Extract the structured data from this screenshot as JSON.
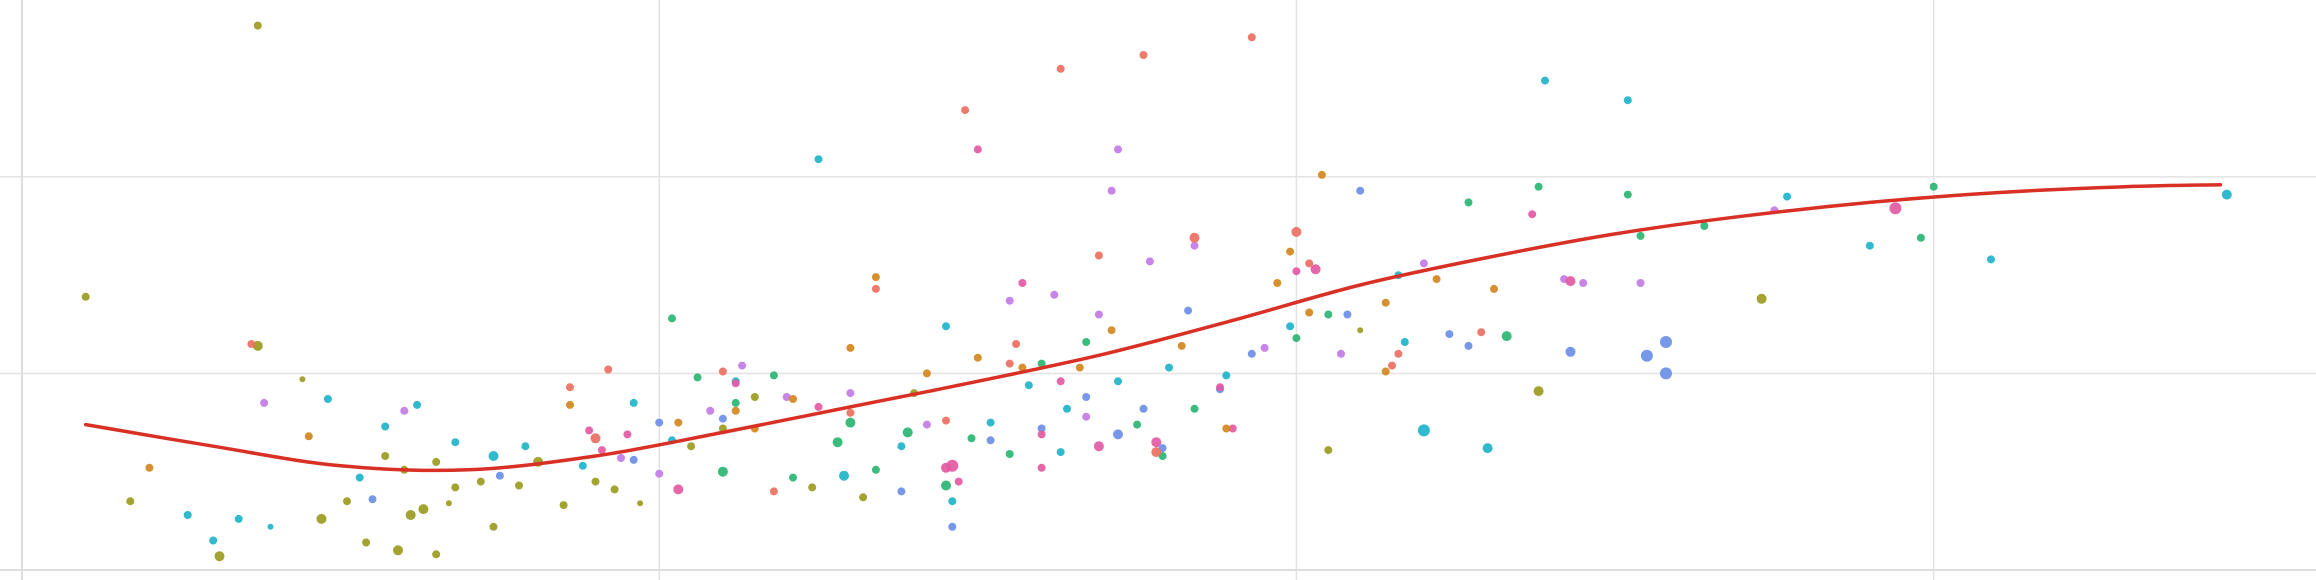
{
  "chart_data": {
    "type": "scatter",
    "title": "",
    "xlabel": "",
    "ylabel": "",
    "xlim": [
      0,
      3.6
    ],
    "ylim": [
      0,
      2.9
    ],
    "grid": true,
    "legend": "none",
    "x_gridlines": [
      1,
      2,
      3
    ],
    "y_gridlines": [
      1,
      2
    ],
    "palette": [
      "#9b9b1f",
      "#2ab573",
      "#1fb3c9",
      "#6b8fe6",
      "#c47ae6",
      "#e35aa3",
      "#ec6f5f",
      "#d4871d"
    ],
    "trend_line": {
      "color": "#d93025",
      "x": [
        0.1,
        0.3,
        0.5,
        0.7,
        0.9,
        1.1,
        1.3,
        1.5,
        1.7,
        1.9,
        2.1,
        2.3,
        2.5,
        2.7,
        2.9,
        3.1,
        3.3,
        3.45
      ],
      "y": [
        0.74,
        0.63,
        0.53,
        0.51,
        0.58,
        0.7,
        0.83,
        0.96,
        1.1,
        1.27,
        1.45,
        1.59,
        1.71,
        1.8,
        1.87,
        1.92,
        1.95,
        1.96
      ]
    },
    "series": [
      {
        "color": "#9b9b1f",
        "points": [
          [
            0.37,
            2.77,
            4
          ],
          [
            0.1,
            1.39,
            4
          ],
          [
            0.17,
            0.35,
            4
          ],
          [
            0.31,
            0.07,
            5
          ],
          [
            0.37,
            1.14,
            5
          ],
          [
            0.44,
            0.97,
            3
          ],
          [
            0.47,
            0.26,
            5
          ],
          [
            0.51,
            0.35,
            4
          ],
          [
            0.54,
            0.14,
            4
          ],
          [
            0.57,
            0.58,
            4
          ],
          [
            0.59,
            0.1,
            5
          ],
          [
            0.61,
            0.28,
            5
          ],
          [
            0.63,
            0.31,
            5
          ],
          [
            0.65,
            0.55,
            4
          ],
          [
            0.67,
            0.34,
            3
          ],
          [
            0.72,
            0.45,
            4
          ],
          [
            0.78,
            0.43,
            4
          ],
          [
            0.81,
            0.55,
            5
          ],
          [
            0.85,
            0.33,
            4
          ],
          [
            0.9,
            0.45,
            4
          ],
          [
            0.93,
            0.41,
            4
          ],
          [
            0.97,
            0.34,
            3
          ],
          [
            1.05,
            0.63,
            4
          ],
          [
            1.1,
            0.72,
            4
          ],
          [
            1.15,
            0.88,
            4
          ],
          [
            1.24,
            0.42,
            4
          ],
          [
            1.32,
            0.37,
            4
          ],
          [
            1.4,
            0.9,
            4
          ],
          [
            2.05,
            0.61,
            4
          ],
          [
            2.1,
            1.22,
            3
          ],
          [
            2.38,
            0.91,
            5
          ],
          [
            2.73,
            1.38,
            5
          ],
          [
            0.6,
            0.51,
            4
          ],
          [
            0.65,
            0.08,
            4
          ],
          [
            0.74,
            0.22,
            4
          ],
          [
            0.68,
            0.42,
            4
          ]
        ]
      },
      {
        "color": "#2ab573",
        "points": [
          [
            1.02,
            1.28,
            4
          ],
          [
            1.06,
            0.98,
            4
          ],
          [
            1.12,
            0.85,
            4
          ],
          [
            1.18,
            0.99,
            4
          ],
          [
            1.28,
            0.65,
            5
          ],
          [
            1.3,
            0.75,
            5
          ],
          [
            1.39,
            0.7,
            5
          ],
          [
            1.45,
            0.43,
            5
          ],
          [
            1.49,
            0.67,
            4
          ],
          [
            1.55,
            0.59,
            4
          ],
          [
            1.6,
            1.05,
            4
          ],
          [
            1.67,
            1.16,
            4
          ],
          [
            1.75,
            0.74,
            4
          ],
          [
            1.79,
            0.58,
            4
          ],
          [
            1.84,
            0.82,
            4
          ],
          [
            2.0,
            1.18,
            4
          ],
          [
            2.05,
            1.3,
            4
          ],
          [
            2.27,
            1.87,
            4
          ],
          [
            2.38,
            1.95,
            4
          ],
          [
            2.52,
            1.91,
            4
          ],
          [
            2.54,
            1.7,
            4
          ],
          [
            3.0,
            1.95,
            4
          ],
          [
            2.33,
            1.19,
            5
          ],
          [
            2.64,
            1.75,
            4
          ],
          [
            2.98,
            1.69,
            4
          ],
          [
            1.21,
            0.47,
            4
          ],
          [
            1.1,
            0.5,
            5
          ],
          [
            1.34,
            0.51,
            4
          ]
        ]
      },
      {
        "color": "#1fb3c9",
        "points": [
          [
            0.26,
            0.28,
            4
          ],
          [
            0.3,
            0.15,
            4
          ],
          [
            0.34,
            0.26,
            4
          ],
          [
            0.39,
            0.22,
            3
          ],
          [
            0.48,
            0.87,
            4
          ],
          [
            0.53,
            0.47,
            4
          ],
          [
            0.57,
            0.73,
            4
          ],
          [
            0.62,
            0.84,
            4
          ],
          [
            0.68,
            0.65,
            4
          ],
          [
            0.74,
            0.58,
            5
          ],
          [
            0.79,
            0.63,
            4
          ],
          [
            0.88,
            0.53,
            4
          ],
          [
            0.96,
            0.85,
            4
          ],
          [
            1.02,
            0.66,
            4
          ],
          [
            1.12,
            0.96,
            4
          ],
          [
            1.25,
            2.09,
            4
          ],
          [
            1.29,
            0.48,
            5
          ],
          [
            1.38,
            0.63,
            4
          ],
          [
            1.45,
            1.24,
            4
          ],
          [
            1.46,
            0.35,
            4
          ],
          [
            1.52,
            0.75,
            4
          ],
          [
            1.58,
            0.94,
            4
          ],
          [
            1.64,
            0.82,
            4
          ],
          [
            1.72,
            0.96,
            4
          ],
          [
            1.8,
            1.03,
            4
          ],
          [
            1.89,
            0.99,
            4
          ],
          [
            1.99,
            1.24,
            4
          ],
          [
            2.17,
            1.16,
            4
          ],
          [
            2.2,
            0.71,
            6
          ],
          [
            2.3,
            0.62,
            5
          ],
          [
            2.39,
            2.49,
            4
          ],
          [
            2.52,
            2.39,
            4
          ],
          [
            2.77,
            1.9,
            4
          ],
          [
            2.9,
            1.65,
            4
          ],
          [
            3.09,
            1.58,
            4
          ],
          [
            3.46,
            1.91,
            5
          ],
          [
            2.16,
            1.5,
            4
          ],
          [
            1.63,
            0.6,
            4
          ]
        ]
      },
      {
        "color": "#6b8fe6",
        "points": [
          [
            0.55,
            0.36,
            4
          ],
          [
            0.75,
            0.48,
            4
          ],
          [
            0.96,
            0.56,
            4
          ],
          [
            1.0,
            0.75,
            4
          ],
          [
            1.1,
            0.77,
            4
          ],
          [
            1.38,
            0.4,
            4
          ],
          [
            1.46,
            0.22,
            4
          ],
          [
            1.52,
            0.66,
            4
          ],
          [
            1.6,
            0.72,
            4
          ],
          [
            1.67,
            0.88,
            4
          ],
          [
            1.72,
            0.69,
            5
          ],
          [
            1.79,
            0.62,
            4
          ],
          [
            1.83,
            1.32,
            4
          ],
          [
            1.88,
            0.92,
            4
          ],
          [
            1.93,
            1.1,
            4
          ],
          [
            2.1,
            1.93,
            4
          ],
          [
            2.27,
            1.14,
            4
          ],
          [
            2.24,
            1.2,
            4
          ],
          [
            2.43,
            1.11,
            5
          ],
          [
            2.55,
            1.09,
            6
          ],
          [
            2.58,
            1.0,
            6
          ],
          [
            2.58,
            1.16,
            6
          ],
          [
            2.08,
            1.3,
            4
          ],
          [
            1.76,
            0.82,
            4
          ]
        ]
      },
      {
        "color": "#c47ae6",
        "points": [
          [
            0.38,
            0.85,
            4
          ],
          [
            0.6,
            0.81,
            4
          ],
          [
            0.94,
            0.57,
            4
          ],
          [
            1.0,
            0.49,
            4
          ],
          [
            1.13,
            1.04,
            4
          ],
          [
            1.2,
            0.88,
            4
          ],
          [
            1.3,
            0.9,
            4
          ],
          [
            1.42,
            0.74,
            4
          ],
          [
            1.55,
            1.37,
            4
          ],
          [
            1.62,
            1.4,
            4
          ],
          [
            1.69,
            1.3,
            4
          ],
          [
            1.72,
            2.14,
            4
          ],
          [
            1.71,
            1.93,
            4
          ],
          [
            1.77,
            1.57,
            4
          ],
          [
            1.84,
            1.65,
            4
          ],
          [
            1.95,
            1.13,
            4
          ],
          [
            2.07,
            1.1,
            4
          ],
          [
            2.2,
            1.56,
            4
          ],
          [
            2.42,
            1.48,
            4
          ],
          [
            2.75,
            1.83,
            4
          ],
          [
            2.54,
            1.46,
            4
          ],
          [
            2.45,
            1.46,
            4
          ],
          [
            1.08,
            0.81,
            4
          ],
          [
            1.67,
            0.78,
            4
          ]
        ]
      },
      {
        "color": "#e35aa3",
        "points": [
          [
            0.89,
            0.71,
            4
          ],
          [
            0.95,
            0.69,
            4
          ],
          [
            1.03,
            0.41,
            5
          ],
          [
            1.12,
            0.95,
            4
          ],
          [
            1.25,
            0.83,
            4
          ],
          [
            1.45,
            0.52,
            5
          ],
          [
            1.46,
            0.53,
            6
          ],
          [
            1.5,
            2.14,
            4
          ],
          [
            1.57,
            1.46,
            4
          ],
          [
            1.6,
            0.52,
            4
          ],
          [
            1.63,
            0.96,
            4
          ],
          [
            1.69,
            0.63,
            5
          ],
          [
            1.78,
            0.65,
            5
          ],
          [
            1.88,
            0.93,
            4
          ],
          [
            2.03,
            1.53,
            5
          ],
          [
            2.37,
            1.81,
            4
          ],
          [
            2.43,
            1.47,
            5
          ],
          [
            2.94,
            1.84,
            6
          ],
          [
            2.0,
            1.52,
            4
          ],
          [
            1.6,
            0.69,
            4
          ],
          [
            1.9,
            0.72,
            4
          ],
          [
            1.47,
            0.45,
            4
          ],
          [
            0.91,
            0.61,
            4
          ]
        ]
      },
      {
        "color": "#ec6f5f",
        "points": [
          [
            0.36,
            1.15,
            4
          ],
          [
            0.86,
            0.93,
            4
          ],
          [
            0.9,
            0.67,
            5
          ],
          [
            0.92,
            1.02,
            4
          ],
          [
            1.1,
            1.01,
            4
          ],
          [
            1.34,
            1.43,
            4
          ],
          [
            1.48,
            2.34,
            4
          ],
          [
            1.55,
            1.05,
            4
          ],
          [
            1.56,
            1.15,
            4
          ],
          [
            1.63,
            2.55,
            4
          ],
          [
            1.69,
            1.6,
            4
          ],
          [
            1.76,
            2.62,
            4
          ],
          [
            1.84,
            1.69,
            5
          ],
          [
            1.93,
            2.71,
            4
          ],
          [
            2.0,
            1.72,
            5
          ],
          [
            2.02,
            1.56,
            4
          ],
          [
            2.15,
            1.04,
            4
          ],
          [
            2.16,
            1.1,
            4
          ],
          [
            2.29,
            1.21,
            4
          ],
          [
            1.78,
            0.6,
            5
          ],
          [
            1.18,
            0.4,
            4
          ],
          [
            1.45,
            0.76,
            4
          ],
          [
            1.3,
            0.8,
            4
          ]
        ]
      },
      {
        "color": "#d4871d",
        "points": [
          [
            0.2,
            0.52,
            4
          ],
          [
            0.45,
            0.68,
            4
          ],
          [
            0.86,
            0.84,
            4
          ],
          [
            1.03,
            0.75,
            4
          ],
          [
            1.12,
            0.81,
            4
          ],
          [
            1.21,
            0.87,
            4
          ],
          [
            1.3,
            1.13,
            4
          ],
          [
            1.34,
            1.49,
            4
          ],
          [
            1.42,
            1.0,
            4
          ],
          [
            1.5,
            1.08,
            4
          ],
          [
            1.57,
            1.03,
            4
          ],
          [
            1.66,
            1.03,
            4
          ],
          [
            1.71,
            1.22,
            4
          ],
          [
            1.82,
            1.14,
            4
          ],
          [
            1.89,
            0.72,
            4
          ],
          [
            1.97,
            1.46,
            4
          ],
          [
            1.99,
            1.62,
            4
          ],
          [
            2.04,
            2.01,
            4
          ],
          [
            2.14,
            1.36,
            4
          ],
          [
            2.14,
            1.01,
            4
          ],
          [
            2.22,
            1.48,
            4
          ],
          [
            2.31,
            1.43,
            4
          ],
          [
            2.02,
            1.31,
            4
          ],
          [
            1.15,
            0.72,
            4
          ]
        ]
      }
    ]
  }
}
